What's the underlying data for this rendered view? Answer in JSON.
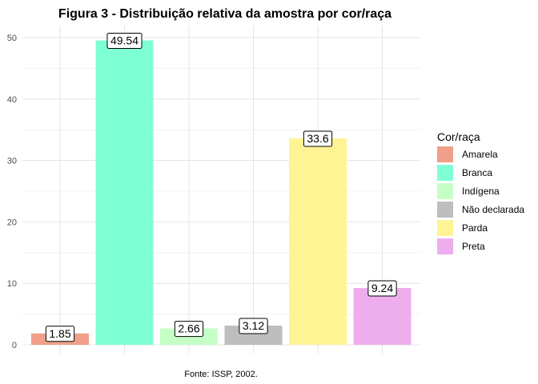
{
  "chart_data": {
    "type": "bar",
    "title": "Figura 3 - Distribuição relativa da amostra por cor/raça",
    "caption": "Fonte: ISSP, 2002.",
    "xlabel": "",
    "ylabel": "",
    "categories": [
      "Amarela",
      "Branca",
      "Indígena",
      "Não declarada",
      "Parda",
      "Preta"
    ],
    "values": [
      1.85,
      49.54,
      2.66,
      3.12,
      33.6,
      9.24
    ],
    "data_labels": [
      "1.85",
      "49.54",
      "2.66",
      "3.12",
      "33.6",
      "9.24"
    ],
    "colors": [
      "#F0A08A",
      "#7FFFD4",
      "#C6FFC6",
      "#BEBEBE",
      "#FFF494",
      "#EEAEEE"
    ],
    "ylim": [
      0,
      50
    ],
    "yticks": [
      0,
      10,
      20,
      30,
      40,
      50
    ],
    "grid": true,
    "legend": {
      "title": "Cor/raça",
      "position": "right",
      "entries": [
        "Amarela",
        "Branca",
        "Indígena",
        "Não declarada",
        "Parda",
        "Preta"
      ]
    }
  }
}
